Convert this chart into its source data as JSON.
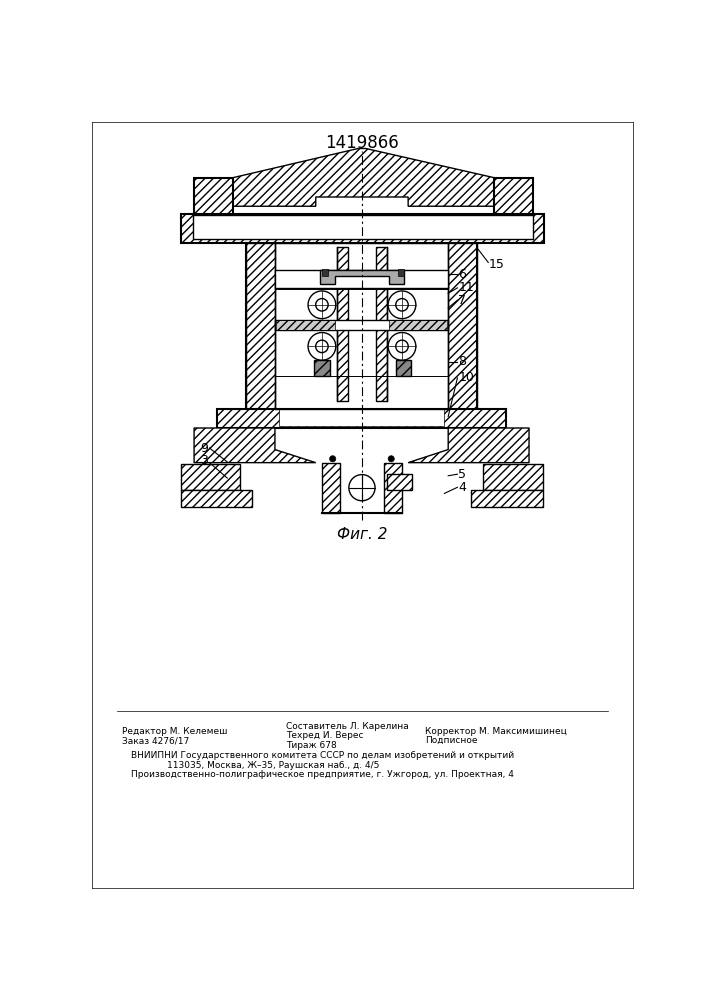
{
  "title": "1419866",
  "caption": "Фиг. 2",
  "bg_color": "#ffffff",
  "line_color": "#000000",
  "footer_left_line1": "Редактор М. Келемеш",
  "footer_left_line2": "Заказ 4276/17",
  "footer_mid_line1": "Составитель Л. Карелина",
  "footer_mid_line2": "Техред И. Верес",
  "footer_mid_line3": "Тираж 678",
  "footer_right_line1": "Корректор М. Максимишинец",
  "footer_right_line2": "Подписное",
  "footer_vniipni_line1": "ВНИИПНИ Государственного комитета СССР по делам изобретений и открытий",
  "footer_vniipni_line2": "113035, Москва, Ж–35, Раушская наб., д. 4/5",
  "footer_vniipni_line3": "Производственно-полиграфическое предприятие, г. Ужгород, ул. Проектная, 4"
}
